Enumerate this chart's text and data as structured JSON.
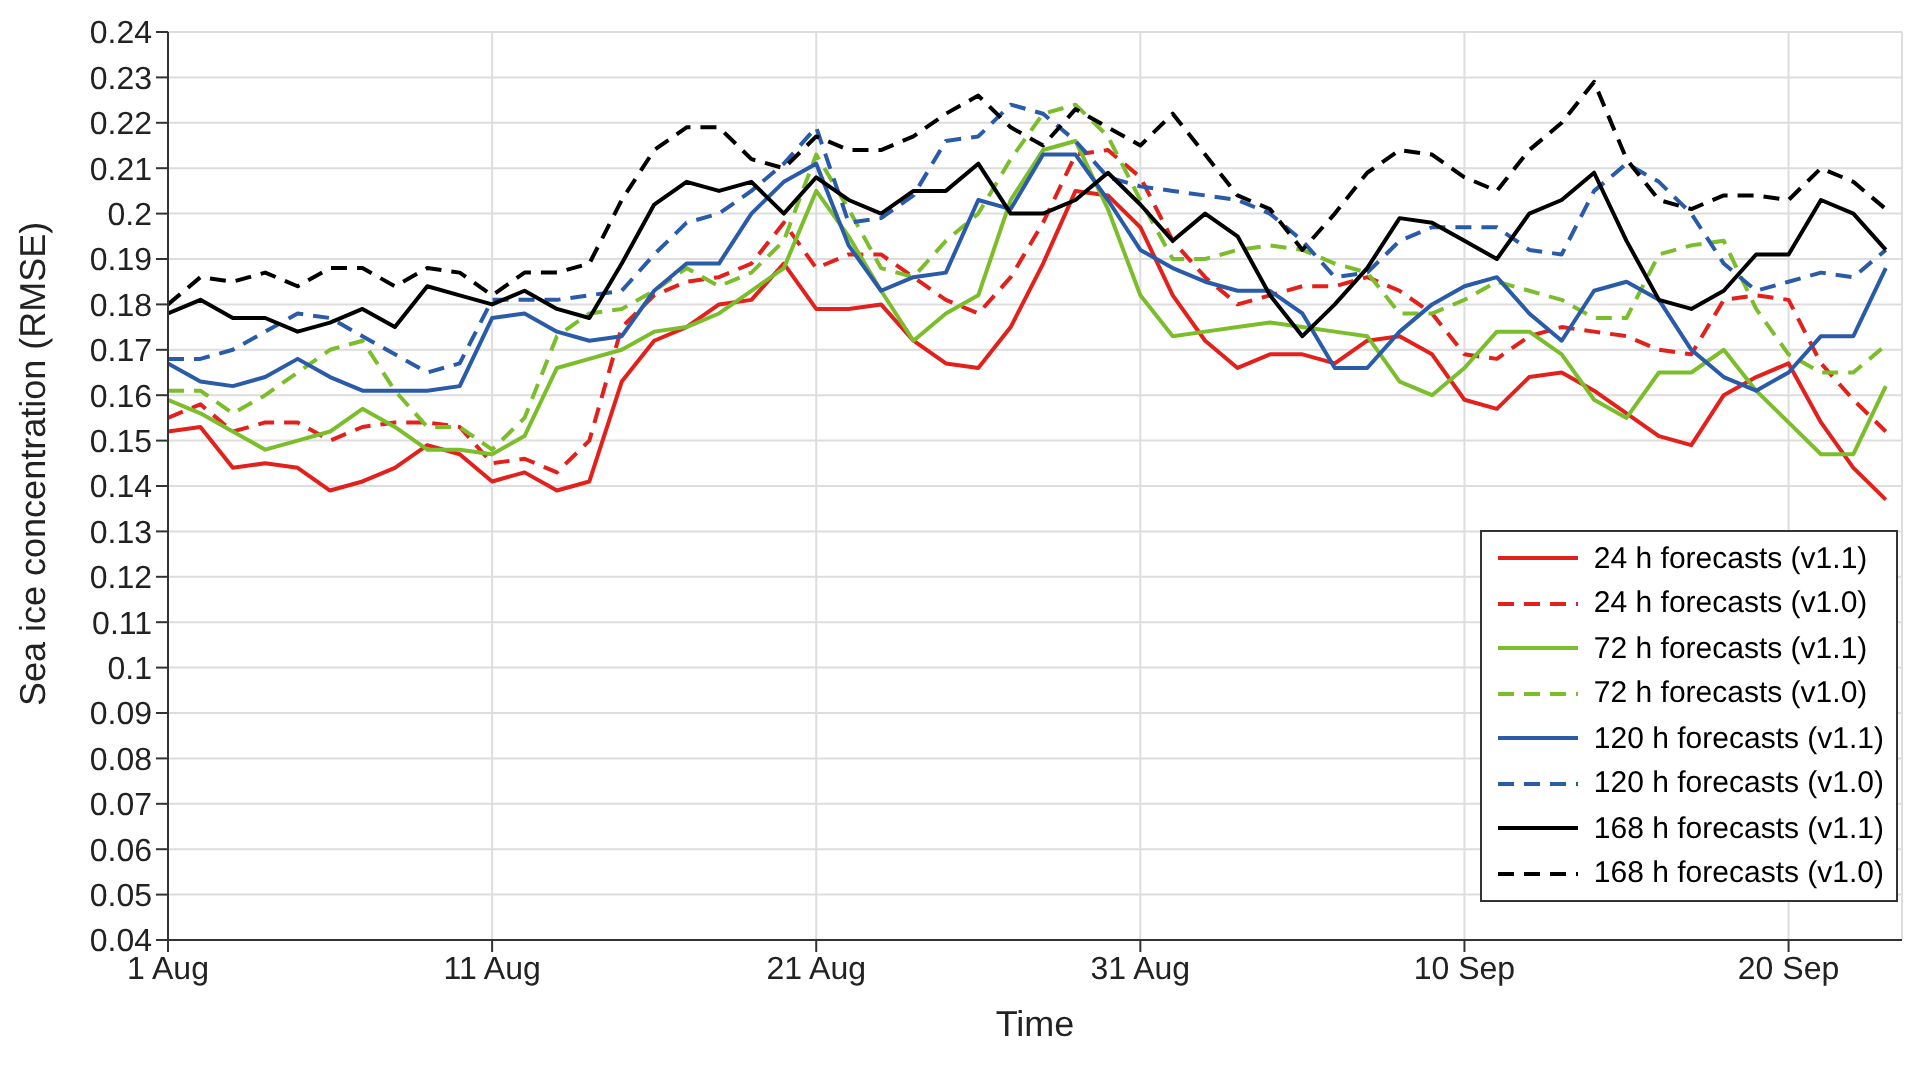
{
  "chart_data": {
    "type": "line",
    "xlabel": "Time",
    "ylabel": "Sea ice concentration (RMSE)",
    "x": [
      "--08-01",
      "--08-02",
      "--08-03",
      "--08-04",
      "--08-05",
      "--08-06",
      "--08-07",
      "--08-08",
      "--08-09",
      "--08-10",
      "--08-11",
      "--08-12",
      "--08-13",
      "--08-14",
      "--08-15",
      "--08-16",
      "--08-17",
      "--08-18",
      "--08-19",
      "--08-20",
      "--08-21",
      "--08-22",
      "--08-23",
      "--08-24",
      "--08-25",
      "--08-26",
      "--08-27",
      "--08-28",
      "--08-29",
      "--08-30",
      "--08-31",
      "--09-01",
      "--09-02",
      "--09-03",
      "--09-04",
      "--09-05",
      "--09-06",
      "--09-07",
      "--09-08",
      "--09-09",
      "--09-10",
      "--09-11",
      "--09-12",
      "--09-13",
      "--09-14",
      "--09-15",
      "--09-16",
      "--09-17",
      "--09-18",
      "--09-19",
      "--09-20",
      "--09-21",
      "--09-22",
      "--09-23"
    ],
    "series": [
      {
        "name": "24 h forecasts (v1.1)",
        "color": "#e3211c",
        "line_style": "solid",
        "values": [
          0.152,
          0.153,
          0.144,
          0.145,
          0.144,
          0.139,
          0.141,
          0.144,
          0.149,
          0.147,
          0.141,
          0.143,
          0.139,
          0.141,
          0.163,
          0.172,
          0.175,
          0.18,
          0.181,
          0.189,
          0.179,
          0.179,
          0.18,
          0.172,
          0.167,
          0.166,
          0.175,
          0.189,
          0.205,
          0.204,
          0.197,
          0.182,
          0.172,
          0.166,
          0.169,
          0.169,
          0.167,
          0.172,
          0.173,
          0.169,
          0.159,
          0.157,
          0.164,
          0.165,
          0.161,
          0.156,
          0.151,
          0.149,
          0.16,
          0.164,
          0.167,
          0.154,
          0.144,
          0.137
        ]
      },
      {
        "name": "24 h forecasts (v1.0)",
        "color": "#e3211c",
        "line_style": "dashed",
        "values": [
          0.155,
          0.158,
          0.152,
          0.154,
          0.154,
          0.15,
          0.153,
          0.154,
          0.154,
          0.153,
          0.145,
          0.146,
          0.143,
          0.15,
          0.175,
          0.182,
          0.185,
          0.186,
          0.189,
          0.198,
          0.188,
          0.191,
          0.191,
          0.186,
          0.181,
          0.178,
          0.186,
          0.198,
          0.213,
          0.214,
          0.208,
          0.194,
          0.186,
          0.18,
          0.182,
          0.184,
          0.184,
          0.186,
          0.183,
          0.178,
          0.169,
          0.168,
          0.173,
          0.175,
          0.174,
          0.173,
          0.17,
          0.169,
          0.181,
          0.182,
          0.181,
          0.167,
          0.159,
          0.152
        ]
      },
      {
        "name": "72 h forecasts (v1.1)",
        "color": "#7cbd2c",
        "line_style": "solid",
        "values": [
          0.159,
          0.156,
          0.152,
          0.148,
          0.15,
          0.152,
          0.157,
          0.153,
          0.148,
          0.148,
          0.147,
          0.151,
          0.166,
          0.168,
          0.17,
          0.174,
          0.175,
          0.178,
          0.183,
          0.188,
          0.205,
          0.195,
          0.183,
          0.172,
          0.178,
          0.182,
          0.203,
          0.214,
          0.216,
          0.201,
          0.182,
          0.173,
          0.174,
          0.175,
          0.176,
          0.175,
          0.174,
          0.173,
          0.163,
          0.16,
          0.166,
          0.174,
          0.174,
          0.169,
          0.159,
          0.155,
          0.165,
          0.165,
          0.17,
          0.161,
          0.154,
          0.147,
          0.147,
          0.162
        ]
      },
      {
        "name": "72 h forecasts (v1.0)",
        "color": "#7cbd2c",
        "line_style": "dashed",
        "values": [
          0.161,
          0.161,
          0.156,
          0.16,
          0.165,
          0.17,
          0.172,
          0.161,
          0.153,
          0.153,
          0.148,
          0.155,
          0.173,
          0.178,
          0.179,
          0.183,
          0.188,
          0.184,
          0.187,
          0.194,
          0.213,
          0.201,
          0.188,
          0.186,
          0.194,
          0.2,
          0.212,
          0.222,
          0.224,
          0.217,
          0.203,
          0.19,
          0.19,
          0.192,
          0.193,
          0.192,
          0.189,
          0.187,
          0.178,
          0.178,
          0.181,
          0.185,
          0.183,
          0.181,
          0.177,
          0.177,
          0.191,
          0.193,
          0.194,
          0.179,
          0.169,
          0.165,
          0.165,
          0.171
        ]
      },
      {
        "name": "120 h forecasts (v1.1)",
        "color": "#2a5ba8",
        "line_style": "solid",
        "values": [
          0.167,
          0.163,
          0.162,
          0.164,
          0.168,
          0.164,
          0.161,
          0.161,
          0.161,
          0.162,
          0.177,
          0.178,
          0.174,
          0.172,
          0.173,
          0.183,
          0.189,
          0.189,
          0.2,
          0.207,
          0.211,
          0.193,
          0.183,
          0.186,
          0.187,
          0.203,
          0.201,
          0.213,
          0.213,
          0.203,
          0.192,
          0.188,
          0.185,
          0.183,
          0.183,
          0.178,
          0.166,
          0.166,
          0.174,
          0.18,
          0.184,
          0.186,
          0.178,
          0.172,
          0.183,
          0.185,
          0.181,
          0.17,
          0.164,
          0.161,
          0.165,
          0.173,
          0.173,
          0.188
        ]
      },
      {
        "name": "120 h forecasts (v1.0)",
        "color": "#2a5ba8",
        "line_style": "dashed",
        "values": [
          0.168,
          0.168,
          0.17,
          0.174,
          0.178,
          0.177,
          0.173,
          0.169,
          0.165,
          0.167,
          0.181,
          0.181,
          0.181,
          0.182,
          0.183,
          0.191,
          0.198,
          0.2,
          0.205,
          0.211,
          0.219,
          0.198,
          0.199,
          0.204,
          0.216,
          0.217,
          0.224,
          0.222,
          0.216,
          0.208,
          0.206,
          0.205,
          0.204,
          0.203,
          0.2,
          0.194,
          0.186,
          0.187,
          0.194,
          0.197,
          0.197,
          0.197,
          0.192,
          0.191,
          0.205,
          0.211,
          0.207,
          0.2,
          0.189,
          0.183,
          0.185,
          0.187,
          0.186,
          0.192
        ]
      },
      {
        "name": "168 h forecasts (v1.1)",
        "color": "#000000",
        "line_style": "solid",
        "values": [
          0.178,
          0.181,
          0.177,
          0.177,
          0.174,
          0.176,
          0.179,
          0.175,
          0.184,
          0.182,
          0.18,
          0.183,
          0.179,
          0.177,
          0.189,
          0.202,
          0.207,
          0.205,
          0.207,
          0.2,
          0.208,
          0.203,
          0.2,
          0.205,
          0.205,
          0.211,
          0.2,
          0.2,
          0.203,
          0.209,
          0.202,
          0.194,
          0.2,
          0.195,
          0.182,
          0.173,
          0.18,
          0.188,
          0.199,
          0.198,
          0.194,
          0.19,
          0.2,
          0.203,
          0.209,
          0.194,
          0.181,
          0.179,
          0.183,
          0.191,
          0.191,
          0.203,
          0.2,
          0.192
        ]
      },
      {
        "name": "168 h forecasts (v1.0)",
        "color": "#000000",
        "line_style": "dashed",
        "values": [
          0.18,
          0.186,
          0.185,
          0.187,
          0.184,
          0.188,
          0.188,
          0.184,
          0.188,
          0.187,
          0.182,
          0.187,
          0.187,
          0.189,
          0.203,
          0.214,
          0.219,
          0.219,
          0.212,
          0.21,
          0.217,
          0.214,
          0.214,
          0.217,
          0.222,
          0.226,
          0.219,
          0.215,
          0.223,
          0.219,
          0.215,
          0.222,
          0.213,
          0.204,
          0.201,
          0.192,
          0.2,
          0.209,
          0.214,
          0.213,
          0.208,
          0.205,
          0.214,
          0.22,
          0.229,
          0.212,
          0.203,
          0.201,
          0.204,
          0.204,
          0.203,
          0.21,
          0.207,
          0.201
        ]
      }
    ],
    "xlim": [
      "--08-01",
      "--09-23T12:00"
    ],
    "xticks": [
      {
        "value": "--08-01",
        "label": "1 Aug"
      },
      {
        "value": "--08-11",
        "label": "11 Aug"
      },
      {
        "value": "--08-21",
        "label": "21 Aug"
      },
      {
        "value": "--08-31",
        "label": "31 Aug"
      },
      {
        "value": "--09-10",
        "label": "10 Sep"
      },
      {
        "value": "--09-20",
        "label": "20 Sep"
      }
    ],
    "ylim": [
      0.04,
      0.24
    ],
    "yticks": [
      0.04,
      0.05,
      0.06,
      0.07,
      0.08,
      0.09,
      0.1,
      0.11,
      0.12,
      0.13,
      0.14,
      0.15,
      0.16,
      0.17,
      0.18,
      0.19,
      0.2,
      0.21,
      0.22,
      0.23,
      0.24
    ],
    "grid": true,
    "legend": "bottom right",
    "marker": "none"
  }
}
